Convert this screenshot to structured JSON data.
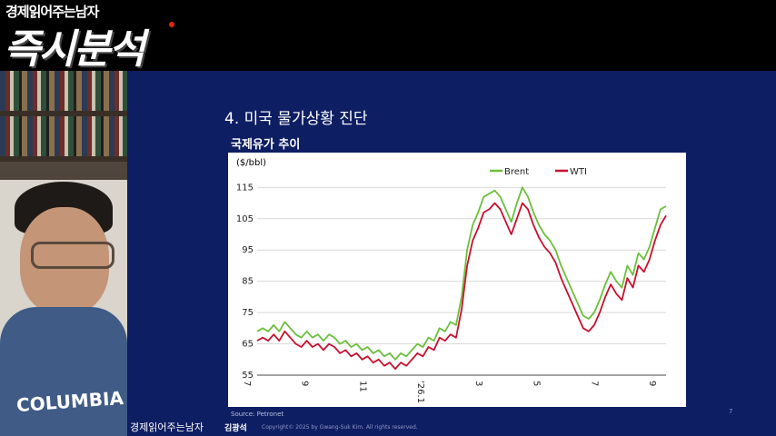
{
  "brand": {
    "subtitle": "경제읽어주는남자",
    "title": "즉시분석"
  },
  "presenter": {
    "shirt_text": "COLUMBIA"
  },
  "slide": {
    "heading": "4. 미국 물가상황 진단",
    "chart_title": "국제유가 추이",
    "source": "Source: Petronet",
    "page_number": "7",
    "footer_brand": "경제읽어주는남자",
    "footer_name": "김광석",
    "copyright": "Copyright© 2025 by Gwang-Suk Kim. All rights reserved."
  },
  "chart_data": {
    "type": "line",
    "ylabel": "($/bbl)",
    "ylim": [
      55,
      118
    ],
    "yticks": [
      55,
      65,
      75,
      85,
      95,
      105,
      115
    ],
    "xticks": [
      "7",
      "9",
      "11",
      "'26.1",
      "3",
      "5",
      "7",
      "9"
    ],
    "legend_position": "top",
    "colors": {
      "Brent": "#6cbf3b",
      "WTI": "#c8102e"
    },
    "series": [
      {
        "name": "Brent",
        "values": [
          69,
          70,
          69,
          71,
          69,
          72,
          70,
          68,
          67,
          69,
          67,
          68,
          66,
          68,
          67,
          65,
          66,
          64,
          65,
          63,
          64,
          62,
          63,
          61,
          62,
          60,
          62,
          61,
          63,
          65,
          64,
          67,
          66,
          70,
          69,
          72,
          71,
          80,
          95,
          103,
          107,
          112,
          113,
          114,
          112,
          108,
          104,
          110,
          115,
          112,
          107,
          103,
          100,
          98,
          95,
          90,
          86,
          82,
          78,
          74,
          73,
          75,
          79,
          84,
          88,
          85,
          83,
          90,
          87,
          94,
          92,
          96,
          102,
          108,
          109
        ]
      },
      {
        "name": "WTI",
        "values": [
          66,
          67,
          66,
          68,
          66,
          69,
          67,
          65,
          64,
          66,
          64,
          65,
          63,
          65,
          64,
          62,
          63,
          61,
          62,
          60,
          61,
          59,
          60,
          58,
          59,
          57,
          59,
          58,
          60,
          62,
          61,
          64,
          63,
          67,
          66,
          68,
          67,
          76,
          90,
          98,
          102,
          107,
          108,
          110,
          108,
          104,
          100,
          105,
          110,
          108,
          103,
          99,
          96,
          94,
          91,
          86,
          82,
          78,
          74,
          70,
          69,
          71,
          75,
          80,
          84,
          81,
          79,
          86,
          83,
          90,
          88,
          92,
          98,
          103,
          106
        ]
      }
    ]
  }
}
